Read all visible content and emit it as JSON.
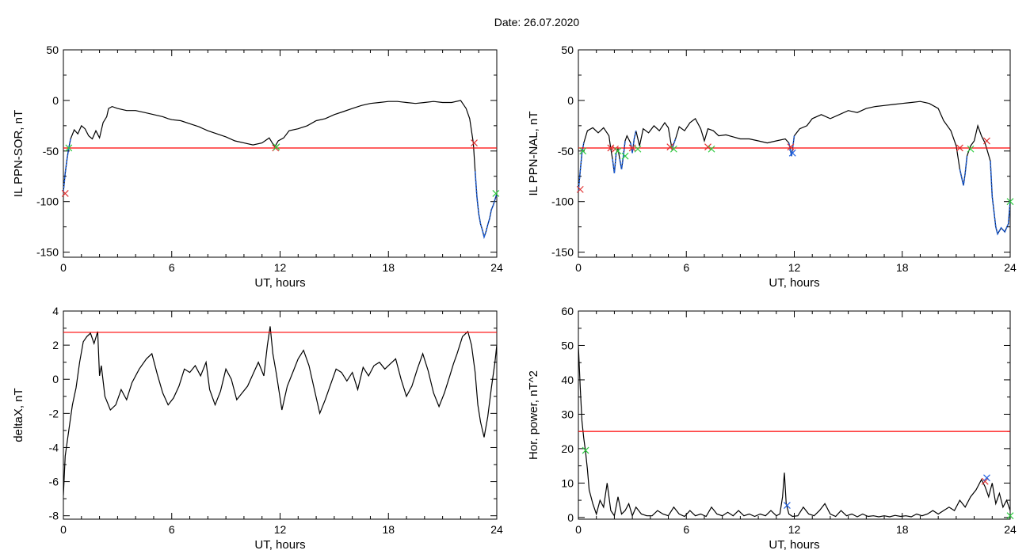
{
  "title": "Date:  26.07.2020",
  "colors": {
    "data_line": "#000000",
    "threshold_line": "#ff0000",
    "highlight_line": "#1f5fd6",
    "marker_red": "#e03030",
    "marker_green": "#2ecc40",
    "marker_blue": "#2060e0"
  },
  "chart_data": [
    {
      "type": "line",
      "xlabel": "UT, hours",
      "ylabel": "IL PPN-SOR, nT",
      "xlim": [
        0,
        24
      ],
      "ylim": [
        -155,
        50
      ],
      "xticks": [
        0,
        6,
        12,
        18,
        24
      ],
      "yticks": [
        50,
        0,
        -50,
        -100,
        -150
      ],
      "threshold": -47,
      "series": [
        {
          "x": [
            0,
            0.1,
            0.2,
            0.3,
            0.4,
            0.6,
            0.8,
            1.0,
            1.2,
            1.4,
            1.6,
            1.8,
            2.0,
            2.2,
            2.4,
            2.5,
            2.7,
            3.0,
            3.5,
            4.0,
            4.5,
            5.0,
            5.5,
            5.8,
            6.0,
            6.5,
            7.0,
            7.5,
            8.0,
            8.5,
            9.0,
            9.5,
            10.0,
            10.5,
            11.0,
            11.4,
            11.7,
            11.9,
            12.2,
            12.5,
            13.0,
            13.5,
            14.0,
            14.5,
            15.0,
            15.5,
            16.0,
            16.5,
            17.0,
            17.5,
            18.0,
            18.5,
            19.0,
            19.5,
            20.0,
            20.5,
            21.0,
            21.5,
            22.0,
            22.3,
            22.5,
            22.7,
            22.8,
            22.9,
            23.0,
            23.1,
            23.2,
            23.3,
            23.4,
            23.5,
            23.6,
            23.7,
            23.8,
            23.9,
            24.0
          ],
          "y": [
            -90,
            -72,
            -58,
            -47,
            -38,
            -29,
            -33,
            -25,
            -28,
            -35,
            -38,
            -30,
            -37,
            -22,
            -16,
            -8,
            -6,
            -8,
            -10,
            -10,
            -12,
            -14,
            -16,
            -18,
            -19,
            -20,
            -23,
            -26,
            -30,
            -33,
            -36,
            -40,
            -42,
            -44,
            -42,
            -37,
            -46,
            -40,
            -37,
            -30,
            -28,
            -25,
            -20,
            -18,
            -14,
            -11,
            -8,
            -5,
            -3,
            -2,
            -1,
            -1,
            -2,
            -3,
            -2,
            -1,
            -2,
            -2,
            0,
            -8,
            -18,
            -42,
            -70,
            -95,
            -112,
            -122,
            -128,
            -135,
            -130,
            -123,
            -117,
            -108,
            -104,
            -98,
            -92
          ]
        }
      ],
      "highlight_segments": [
        [
          0,
          0.4
        ],
        [
          22.8,
          24.0
        ]
      ],
      "markers": [
        {
          "x": 0.1,
          "y": -92,
          "symbol": "x",
          "color": "red"
        },
        {
          "x": 0.3,
          "y": -47,
          "symbol": "x",
          "color": "green"
        },
        {
          "x": 11.75,
          "y": -47,
          "symbol": "x",
          "color": "red"
        },
        {
          "x": 11.8,
          "y": -46,
          "symbol": "x",
          "color": "green"
        },
        {
          "x": 22.75,
          "y": -42,
          "symbol": "x",
          "color": "red"
        },
        {
          "x": 23.95,
          "y": -92,
          "symbol": "x",
          "color": "green"
        }
      ]
    },
    {
      "type": "line",
      "xlabel": "UT, hours",
      "ylabel": "IL PPN-NAL, nT",
      "xlim": [
        0,
        24
      ],
      "ylim": [
        -155,
        50
      ],
      "xticks": [
        0,
        6,
        12,
        18,
        24
      ],
      "yticks": [
        50,
        0,
        -50,
        -100,
        -150
      ],
      "threshold": -47,
      "series": [
        {
          "x": [
            0,
            0.1,
            0.2,
            0.3,
            0.5,
            0.8,
            1.1,
            1.4,
            1.7,
            1.8,
            1.9,
            2.0,
            2.1,
            2.2,
            2.3,
            2.4,
            2.5,
            2.6,
            2.7,
            2.9,
            3.0,
            3.1,
            3.2,
            3.4,
            3.6,
            3.9,
            4.2,
            4.5,
            4.8,
            5.0,
            5.2,
            5.4,
            5.6,
            5.9,
            6.2,
            6.5,
            6.8,
            7.0,
            7.2,
            7.5,
            7.8,
            8.2,
            8.6,
            9.0,
            9.5,
            10.0,
            10.5,
            11.0,
            11.5,
            11.7,
            11.85,
            12.0,
            12.3,
            12.7,
            13.0,
            13.5,
            14.0,
            14.5,
            15.0,
            15.5,
            16.0,
            16.5,
            17.0,
            17.5,
            18.0,
            18.5,
            19.0,
            19.5,
            20.0,
            20.3,
            20.7,
            21.0,
            21.2,
            21.4,
            21.5,
            21.6,
            21.8,
            22.0,
            22.2,
            22.4,
            22.6,
            22.7,
            22.9,
            23.0,
            23.2,
            23.3,
            23.5,
            23.7,
            23.9,
            24.0
          ],
          "y": [
            -90,
            -70,
            -52,
            -42,
            -30,
            -27,
            -32,
            -27,
            -35,
            -48,
            -58,
            -72,
            -52,
            -48,
            -58,
            -68,
            -55,
            -40,
            -35,
            -42,
            -52,
            -38,
            -30,
            -45,
            -28,
            -32,
            -25,
            -30,
            -22,
            -27,
            -48,
            -38,
            -26,
            -30,
            -22,
            -18,
            -28,
            -40,
            -28,
            -30,
            -35,
            -34,
            -36,
            -38,
            -38,
            -40,
            -42,
            -40,
            -38,
            -42,
            -55,
            -35,
            -28,
            -25,
            -18,
            -14,
            -18,
            -14,
            -10,
            -12,
            -8,
            -6,
            -5,
            -4,
            -3,
            -2,
            -1,
            -3,
            -8,
            -20,
            -30,
            -45,
            -68,
            -84,
            -72,
            -55,
            -45,
            -40,
            -25,
            -35,
            -42,
            -48,
            -60,
            -95,
            -125,
            -132,
            -126,
            -130,
            -122,
            -100
          ]
        }
      ],
      "highlight_segments": [
        [
          0,
          0.3
        ],
        [
          1.9,
          2.1
        ],
        [
          2.3,
          2.6
        ],
        [
          2.9,
          3.3
        ],
        [
          5.1,
          5.5
        ],
        [
          7.1,
          7.4
        ],
        [
          11.7,
          12.0
        ],
        [
          21.2,
          21.7
        ],
        [
          22.8,
          24.0
        ]
      ],
      "markers": [
        {
          "x": 0.1,
          "y": -88,
          "symbol": "x",
          "color": "red"
        },
        {
          "x": 0.25,
          "y": -50,
          "symbol": "x",
          "color": "green"
        },
        {
          "x": 1.8,
          "y": -47,
          "symbol": "x",
          "color": "red"
        },
        {
          "x": 2.05,
          "y": -48,
          "symbol": "x",
          "color": "red"
        },
        {
          "x": 2.2,
          "y": -50,
          "symbol": "x",
          "color": "green"
        },
        {
          "x": 2.6,
          "y": -55,
          "symbol": "x",
          "color": "green"
        },
        {
          "x": 3.0,
          "y": -47,
          "symbol": "x",
          "color": "red"
        },
        {
          "x": 3.3,
          "y": -48,
          "symbol": "x",
          "color": "green"
        },
        {
          "x": 5.1,
          "y": -46,
          "symbol": "x",
          "color": "red"
        },
        {
          "x": 5.3,
          "y": -48,
          "symbol": "x",
          "color": "green"
        },
        {
          "x": 7.2,
          "y": -46,
          "symbol": "x",
          "color": "red"
        },
        {
          "x": 7.4,
          "y": -48,
          "symbol": "x",
          "color": "green"
        },
        {
          "x": 11.8,
          "y": -46,
          "symbol": "x",
          "color": "red"
        },
        {
          "x": 11.9,
          "y": -52,
          "symbol": "x",
          "color": "blue"
        },
        {
          "x": 21.2,
          "y": -47,
          "symbol": "x",
          "color": "red"
        },
        {
          "x": 21.8,
          "y": -48,
          "symbol": "x",
          "color": "green"
        },
        {
          "x": 22.7,
          "y": -40,
          "symbol": "x",
          "color": "red"
        },
        {
          "x": 24.0,
          "y": -100,
          "symbol": "x",
          "color": "green"
        }
      ]
    },
    {
      "type": "line",
      "xlabel": "UT, hours",
      "ylabel": "deltaX, nT",
      "xlim": [
        0,
        24
      ],
      "ylim": [
        -8.2,
        4
      ],
      "xticks": [
        0,
        6,
        12,
        18,
        24
      ],
      "yticks": [
        4,
        2,
        0,
        -2,
        -4,
        -6,
        -8
      ],
      "threshold": 2.75,
      "series": [
        {
          "x": [
            0,
            0.1,
            0.3,
            0.5,
            0.7,
            0.9,
            1.1,
            1.3,
            1.5,
            1.7,
            1.9,
            2.0,
            2.1,
            2.3,
            2.6,
            2.9,
            3.2,
            3.5,
            3.8,
            4.2,
            4.6,
            4.9,
            5.2,
            5.5,
            5.8,
            6.1,
            6.4,
            6.7,
            7.0,
            7.3,
            7.6,
            7.9,
            8.1,
            8.4,
            8.7,
            9.0,
            9.3,
            9.6,
            9.9,
            10.2,
            10.5,
            10.8,
            11.1,
            11.3,
            11.45,
            11.6,
            11.8,
            12.1,
            12.4,
            12.7,
            13.0,
            13.3,
            13.6,
            13.9,
            14.2,
            14.5,
            14.8,
            15.1,
            15.4,
            15.7,
            16.0,
            16.3,
            16.6,
            16.9,
            17.2,
            17.5,
            17.8,
            18.1,
            18.4,
            18.7,
            19.0,
            19.3,
            19.6,
            19.9,
            20.2,
            20.5,
            20.8,
            21.1,
            21.4,
            21.6,
            21.8,
            22.1,
            22.4,
            22.6,
            22.8,
            22.95,
            23.1,
            23.3,
            23.5,
            23.7,
            23.9,
            24.0
          ],
          "y": [
            -6.8,
            -4.5,
            -3.0,
            -1.5,
            -0.5,
            1.0,
            2.2,
            2.5,
            2.7,
            2.1,
            2.8,
            0.2,
            0.8,
            -1.0,
            -1.8,
            -1.5,
            -0.6,
            -1.2,
            -0.2,
            0.6,
            1.2,
            1.5,
            0.3,
            -0.8,
            -1.5,
            -1.1,
            -0.4,
            0.6,
            0.4,
            0.8,
            0.2,
            1.0,
            -0.6,
            -1.5,
            -0.7,
            0.6,
            0.0,
            -1.2,
            -0.8,
            -0.4,
            0.3,
            1.0,
            0.2,
            2.0,
            3.1,
            1.5,
            0.3,
            -1.8,
            -0.4,
            0.4,
            1.2,
            1.7,
            0.8,
            -0.6,
            -2.0,
            -1.2,
            -0.3,
            0.6,
            0.4,
            -0.1,
            0.4,
            -0.6,
            0.7,
            0.2,
            0.8,
            1.0,
            0.6,
            0.9,
            1.2,
            0.0,
            -1.0,
            -0.4,
            0.6,
            1.5,
            0.5,
            -0.8,
            -1.6,
            -0.8,
            0.2,
            0.9,
            1.5,
            2.5,
            2.8,
            2.0,
            0.4,
            -1.5,
            -2.5,
            -3.4,
            -2.2,
            -0.5,
            1.0,
            2.0
          ]
        }
      ],
      "highlight_segments": [],
      "markers": []
    },
    {
      "type": "line",
      "xlabel": "UT, hours",
      "ylabel": "Hor. power, nT^2",
      "xlim": [
        0,
        24
      ],
      "ylim": [
        -0.5,
        60
      ],
      "xticks": [
        0,
        6,
        12,
        18,
        24
      ],
      "yticks": [
        60,
        50,
        40,
        30,
        20,
        10,
        0
      ],
      "threshold": 25,
      "series": [
        {
          "x": [
            0,
            0.1,
            0.2,
            0.3,
            0.4,
            0.5,
            0.6,
            0.8,
            1.0,
            1.2,
            1.4,
            1.6,
            1.8,
            2.0,
            2.2,
            2.4,
            2.6,
            2.8,
            3.0,
            3.2,
            3.5,
            3.8,
            4.1,
            4.4,
            4.7,
            5.0,
            5.3,
            5.6,
            5.9,
            6.2,
            6.5,
            6.8,
            7.1,
            7.4,
            7.7,
            8.0,
            8.3,
            8.6,
            8.9,
            9.2,
            9.5,
            9.8,
            10.1,
            10.4,
            10.7,
            11.0,
            11.2,
            11.35,
            11.45,
            11.55,
            11.7,
            11.9,
            12.2,
            12.5,
            12.8,
            13.1,
            13.4,
            13.7,
            14.0,
            14.3,
            14.6,
            14.9,
            15.2,
            15.5,
            15.8,
            16.1,
            16.4,
            16.7,
            17.0,
            17.3,
            17.6,
            17.9,
            18.2,
            18.5,
            18.8,
            19.1,
            19.4,
            19.7,
            20.0,
            20.3,
            20.6,
            20.9,
            21.2,
            21.5,
            21.8,
            22.1,
            22.4,
            22.6,
            22.8,
            23.0,
            23.2,
            23.4,
            23.6,
            23.8,
            24.0
          ],
          "y": [
            50,
            38,
            28,
            23,
            19,
            14,
            8,
            4,
            1,
            5,
            3,
            10,
            2,
            0.5,
            6,
            1,
            2,
            4,
            0.5,
            3,
            1,
            0.5,
            0.5,
            2,
            1,
            0.5,
            3,
            1,
            0.3,
            2,
            0.5,
            1,
            0.3,
            3,
            1,
            0.5,
            1.5,
            0.5,
            2,
            0.5,
            1,
            0.3,
            1,
            0.5,
            2,
            0.5,
            1,
            6,
            13,
            4,
            1,
            0.3,
            0.5,
            3,
            1,
            0.5,
            2,
            4,
            1,
            0.3,
            2,
            0.5,
            1,
            0.2,
            1,
            0.3,
            0.5,
            0.2,
            0.5,
            0.2,
            0.6,
            0.3,
            0.5,
            0.2,
            1,
            0.5,
            1,
            2,
            1,
            2,
            3,
            2,
            5,
            3,
            6,
            8,
            11,
            9,
            6,
            10,
            4,
            7,
            3,
            5,
            2
          ]
        }
      ],
      "highlight_segments": [],
      "markers": [
        {
          "x": 0.4,
          "y": 19.5,
          "symbol": "x",
          "color": "green"
        },
        {
          "x": 11.6,
          "y": 3.5,
          "symbol": "x",
          "color": "blue"
        },
        {
          "x": 22.6,
          "y": 10.5,
          "symbol": "x",
          "color": "red"
        },
        {
          "x": 22.7,
          "y": 11.5,
          "symbol": "x",
          "color": "blue"
        },
        {
          "x": 24.0,
          "y": 0.5,
          "symbol": "x",
          "color": "green"
        }
      ]
    }
  ]
}
